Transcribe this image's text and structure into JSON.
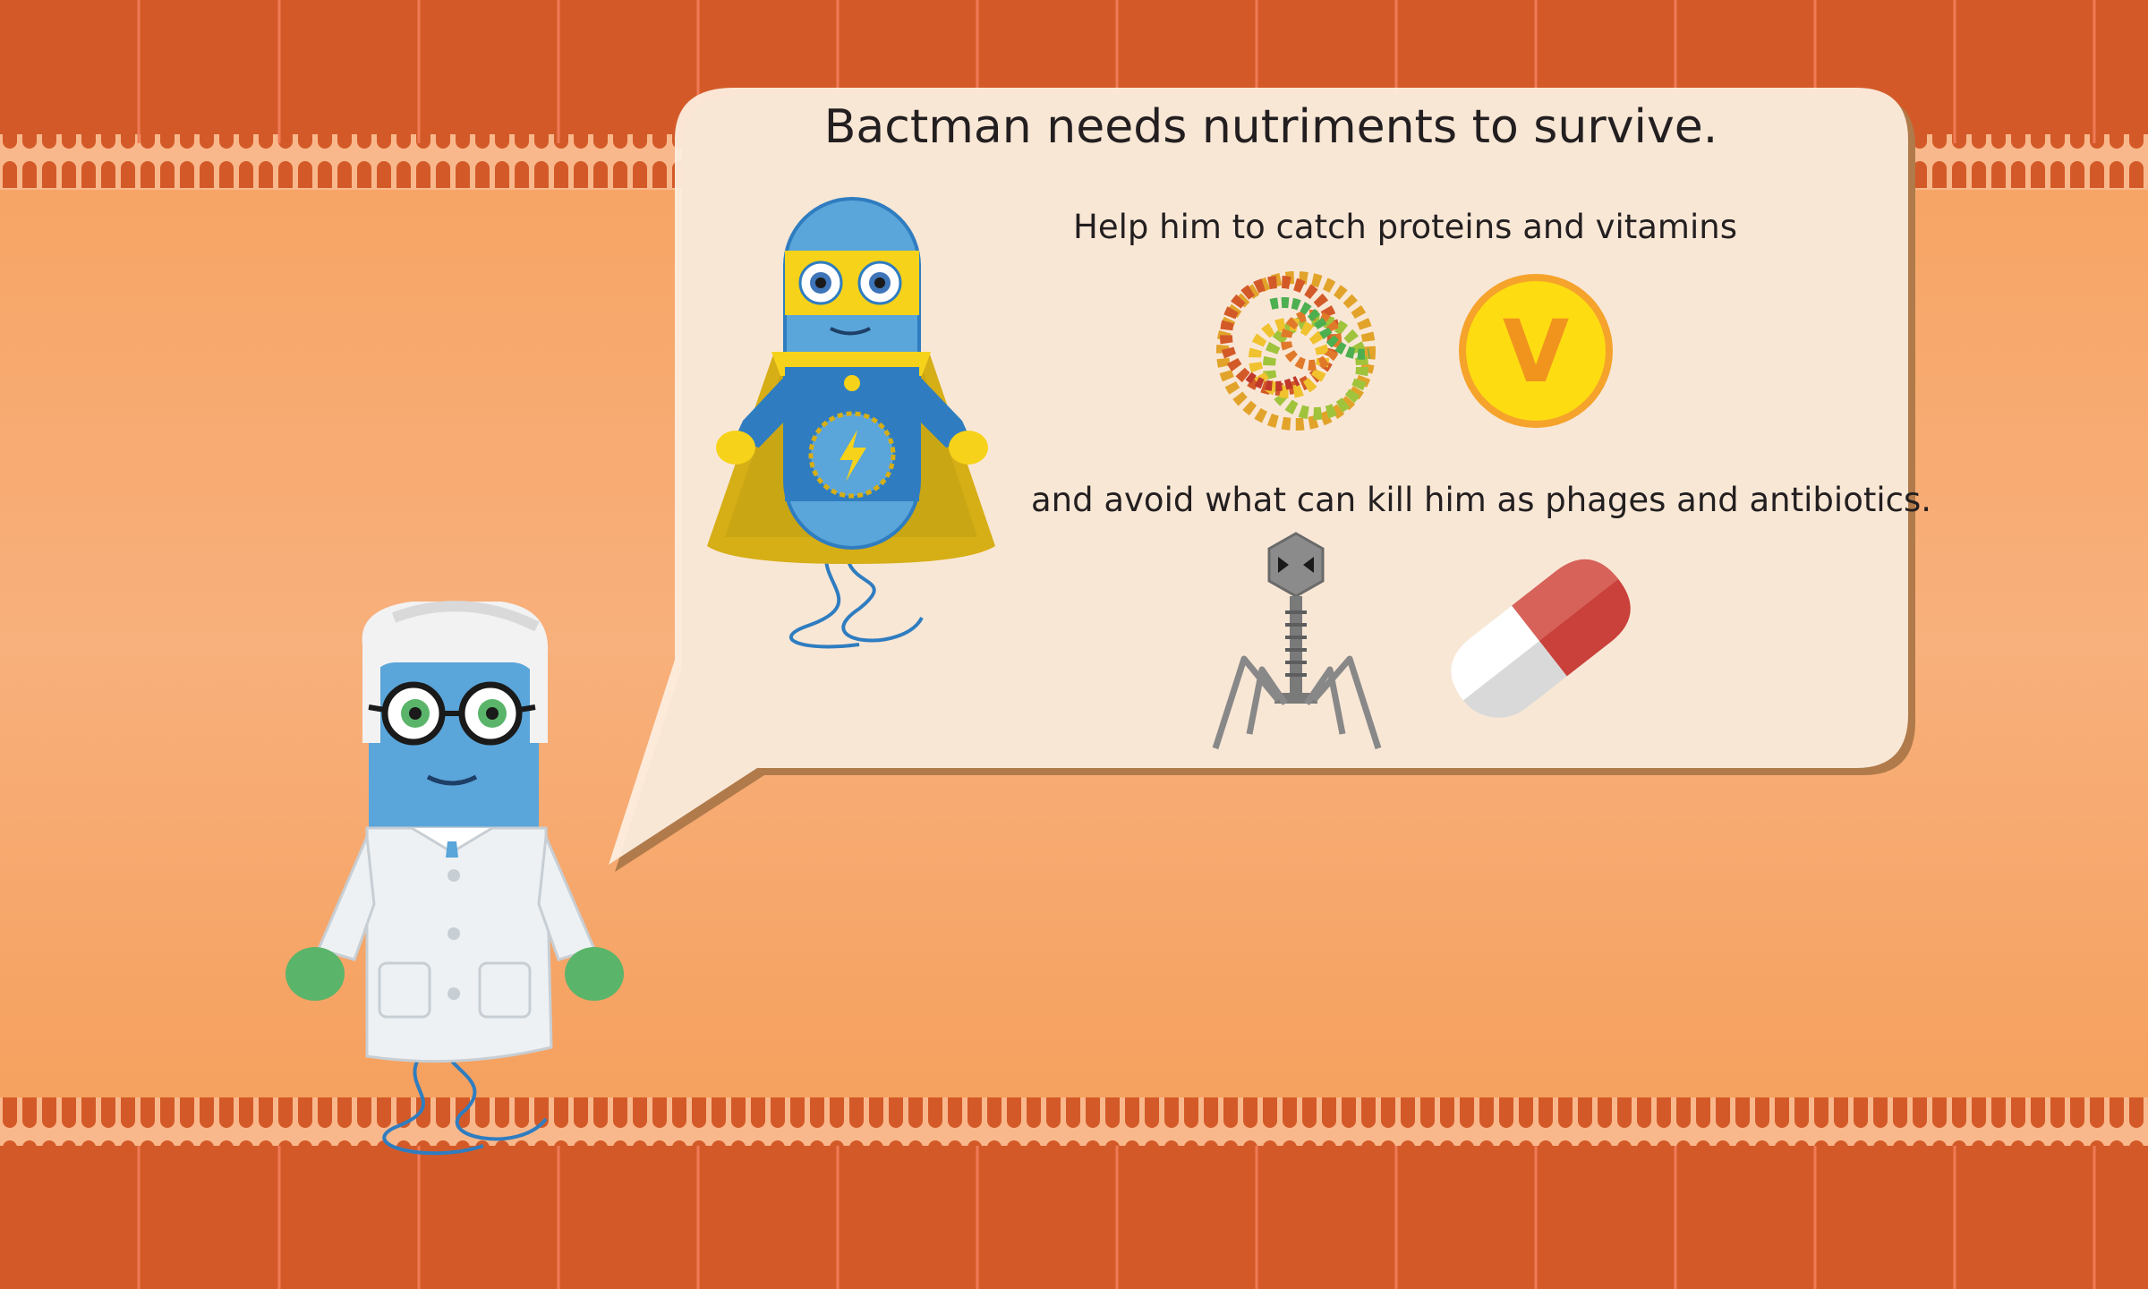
{
  "speech": {
    "title": "Bactman needs nutriments to survive.",
    "line1": "Help him  to catch proteins and vitamins",
    "line2": "and avoid what can kill him as phages and antibiotics."
  },
  "items": {
    "vitamin_letter": "V"
  },
  "colors": {
    "wall": "#d35a28",
    "background": "#f6a664",
    "bubble": "#fdeedf",
    "bacteria_blue": "#5aa5d9",
    "cape_yellow": "#f7d21a",
    "vitamin_yellow": "#fedc12",
    "pill_red": "#c9413a"
  },
  "icons": [
    "scientist-character",
    "bactman-character",
    "protein-icon",
    "vitamin-icon",
    "phage-icon",
    "antibiotic-pill-icon"
  ]
}
